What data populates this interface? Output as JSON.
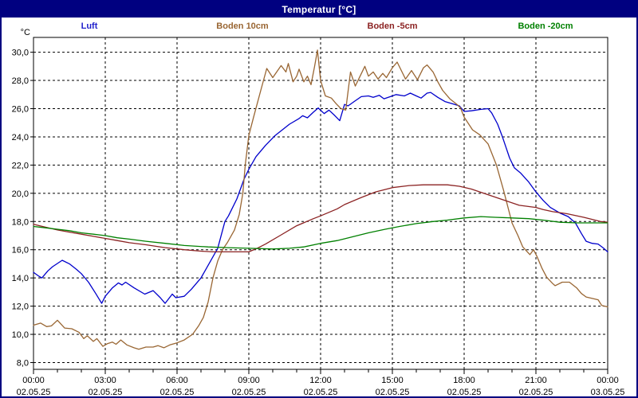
{
  "window": {
    "title": "Temperatur [°C]",
    "title_bar_color": "#000080",
    "background_color": "#ffffff"
  },
  "legend": [
    {
      "label": "Luft",
      "color": "#2222CC"
    },
    {
      "label": "Boden 10cm",
      "color": "#996633"
    },
    {
      "label": "Boden -5cm",
      "color": "#8B2222"
    },
    {
      "label": "Boden -20cm",
      "color": "#008000"
    }
  ],
  "chart_data": {
    "type": "line",
    "title": "Temperatur [°C]",
    "ylabel": "°C",
    "ylim": [
      7.52,
      31.05
    ],
    "xlim_hours": [
      0,
      24
    ],
    "grid": "dashed",
    "legend_position": "top",
    "y_ticks": [
      {
        "value": 30,
        "label": "30,0"
      },
      {
        "value": 28,
        "label": "28,0"
      },
      {
        "value": 26,
        "label": "26,0"
      },
      {
        "value": 24,
        "label": "24,0"
      },
      {
        "value": 22,
        "label": "22,0"
      },
      {
        "value": 20,
        "label": "20,0"
      },
      {
        "value": 18,
        "label": "18,0"
      },
      {
        "value": 16,
        "label": "16,0"
      },
      {
        "value": 14,
        "label": "14,0"
      },
      {
        "value": 12,
        "label": "12,0"
      },
      {
        "value": 10,
        "label": "10,0"
      },
      {
        "value": 8,
        "label": "8,0"
      }
    ],
    "x_ticks": [
      {
        "hour": 0,
        "time": "00:00",
        "date": "02.05.25"
      },
      {
        "hour": 3,
        "time": "03:00",
        "date": "02.05.25"
      },
      {
        "hour": 6,
        "time": "06:00",
        "date": "02.05.25"
      },
      {
        "hour": 9,
        "time": "09:00",
        "date": "02.05.25"
      },
      {
        "hour": 12,
        "time": "12:00",
        "date": "02.05.25"
      },
      {
        "hour": 15,
        "time": "15:00",
        "date": "02.05.25"
      },
      {
        "hour": 18,
        "time": "18:00",
        "date": "02.05.25"
      },
      {
        "hour": 21,
        "time": "21:00",
        "date": "02.05.25"
      },
      {
        "hour": 24,
        "time": "00:00",
        "date": "03.05.25"
      }
    ],
    "x_minor_tick_hours": 1,
    "series": [
      {
        "name": "Luft",
        "color": "#0000CC",
        "points": [
          [
            0,
            14.4
          ],
          [
            0.2,
            14.15
          ],
          [
            0.35,
            14.0
          ],
          [
            0.6,
            14.5
          ],
          [
            0.8,
            14.8
          ],
          [
            1.2,
            15.25
          ],
          [
            1.5,
            15.0
          ],
          [
            1.8,
            14.6
          ],
          [
            2.0,
            14.3
          ],
          [
            2.3,
            13.7
          ],
          [
            2.6,
            12.9
          ],
          [
            2.85,
            12.2
          ],
          [
            3.0,
            12.7
          ],
          [
            3.3,
            13.3
          ],
          [
            3.55,
            13.65
          ],
          [
            3.7,
            13.5
          ],
          [
            3.85,
            13.7
          ],
          [
            4.2,
            13.3
          ],
          [
            4.65,
            12.85
          ],
          [
            5.0,
            13.1
          ],
          [
            5.3,
            12.6
          ],
          [
            5.5,
            12.2
          ],
          [
            5.8,
            12.85
          ],
          [
            5.95,
            12.6
          ],
          [
            6.3,
            12.7
          ],
          [
            6.6,
            13.2
          ],
          [
            7.0,
            14.0
          ],
          [
            7.4,
            15.2
          ],
          [
            7.7,
            16.1
          ],
          [
            8.0,
            18.0
          ],
          [
            8.15,
            18.4
          ],
          [
            8.5,
            19.6
          ],
          [
            8.8,
            21.0
          ],
          [
            9.0,
            21.7
          ],
          [
            9.3,
            22.6
          ],
          [
            9.7,
            23.4
          ],
          [
            10.1,
            24.1
          ],
          [
            10.4,
            24.5
          ],
          [
            10.7,
            24.9
          ],
          [
            11.1,
            25.3
          ],
          [
            11.25,
            25.5
          ],
          [
            11.45,
            25.35
          ],
          [
            11.7,
            25.75
          ],
          [
            11.9,
            26.05
          ],
          [
            12.15,
            25.65
          ],
          [
            12.35,
            25.9
          ],
          [
            12.6,
            25.5
          ],
          [
            12.8,
            25.15
          ],
          [
            13.0,
            26.3
          ],
          [
            13.15,
            26.2
          ],
          [
            13.4,
            26.5
          ],
          [
            13.7,
            26.85
          ],
          [
            14.0,
            26.9
          ],
          [
            14.2,
            26.8
          ],
          [
            14.45,
            26.95
          ],
          [
            14.65,
            26.7
          ],
          [
            15.0,
            26.9
          ],
          [
            15.15,
            27.0
          ],
          [
            15.5,
            26.9
          ],
          [
            15.75,
            27.1
          ],
          [
            16.0,
            26.9
          ],
          [
            16.2,
            26.75
          ],
          [
            16.45,
            27.1
          ],
          [
            16.6,
            27.15
          ],
          [
            16.9,
            26.8
          ],
          [
            17.2,
            26.5
          ],
          [
            17.5,
            26.35
          ],
          [
            17.8,
            26.2
          ],
          [
            18.0,
            25.8
          ],
          [
            18.3,
            25.85
          ],
          [
            18.7,
            25.95
          ],
          [
            19.0,
            26.0
          ],
          [
            19.15,
            25.7
          ],
          [
            19.4,
            24.9
          ],
          [
            19.6,
            24.0
          ],
          [
            19.9,
            22.5
          ],
          [
            20.1,
            21.8
          ],
          [
            20.35,
            21.45
          ],
          [
            20.7,
            20.8
          ],
          [
            21.0,
            20.1
          ],
          [
            21.3,
            19.5
          ],
          [
            21.6,
            19.0
          ],
          [
            22.0,
            18.6
          ],
          [
            22.35,
            18.35
          ],
          [
            22.65,
            17.9
          ],
          [
            22.9,
            17.15
          ],
          [
            23.1,
            16.6
          ],
          [
            23.35,
            16.45
          ],
          [
            23.6,
            16.4
          ],
          [
            23.8,
            16.15
          ],
          [
            24,
            15.85
          ]
        ]
      },
      {
        "name": "Boden 10cm",
        "color": "#996633",
        "points": [
          [
            0,
            10.65
          ],
          [
            0.3,
            10.8
          ],
          [
            0.55,
            10.55
          ],
          [
            0.75,
            10.6
          ],
          [
            1.0,
            11.0
          ],
          [
            1.3,
            10.45
          ],
          [
            1.6,
            10.4
          ],
          [
            1.9,
            10.15
          ],
          [
            2.1,
            9.7
          ],
          [
            2.25,
            9.9
          ],
          [
            2.5,
            9.5
          ],
          [
            2.65,
            9.7
          ],
          [
            2.9,
            9.15
          ],
          [
            3.1,
            9.35
          ],
          [
            3.3,
            9.45
          ],
          [
            3.45,
            9.3
          ],
          [
            3.65,
            9.6
          ],
          [
            3.9,
            9.25
          ],
          [
            4.2,
            9.05
          ],
          [
            4.4,
            8.95
          ],
          [
            4.7,
            9.1
          ],
          [
            5.0,
            9.1
          ],
          [
            5.2,
            9.2
          ],
          [
            5.45,
            9.05
          ],
          [
            5.7,
            9.25
          ],
          [
            6.0,
            9.4
          ],
          [
            6.3,
            9.6
          ],
          [
            6.65,
            10.0
          ],
          [
            6.9,
            10.6
          ],
          [
            7.1,
            11.2
          ],
          [
            7.3,
            12.3
          ],
          [
            7.5,
            14.0
          ],
          [
            7.7,
            15.2
          ],
          [
            7.9,
            16.0
          ],
          [
            8.1,
            16.5
          ],
          [
            8.4,
            17.4
          ],
          [
            8.6,
            18.5
          ],
          [
            8.75,
            20.0
          ],
          [
            8.85,
            22.0
          ],
          [
            9.0,
            24.1
          ],
          [
            9.2,
            25.4
          ],
          [
            9.5,
            27.3
          ],
          [
            9.75,
            28.85
          ],
          [
            10.0,
            28.2
          ],
          [
            10.35,
            29.05
          ],
          [
            10.55,
            28.6
          ],
          [
            10.65,
            29.2
          ],
          [
            10.85,
            27.9
          ],
          [
            11.0,
            28.3
          ],
          [
            11.1,
            28.8
          ],
          [
            11.3,
            27.9
          ],
          [
            11.45,
            28.3
          ],
          [
            11.6,
            27.7
          ],
          [
            11.75,
            29.0
          ],
          [
            11.87,
            30.15
          ],
          [
            12.0,
            28.0
          ],
          [
            12.2,
            26.9
          ],
          [
            12.45,
            26.75
          ],
          [
            12.65,
            26.35
          ],
          [
            12.85,
            26.0
          ],
          [
            13.05,
            25.9
          ],
          [
            13.25,
            28.6
          ],
          [
            13.45,
            27.6
          ],
          [
            13.65,
            28.3
          ],
          [
            13.85,
            29.0
          ],
          [
            14.0,
            28.3
          ],
          [
            14.2,
            28.6
          ],
          [
            14.4,
            28.1
          ],
          [
            14.6,
            28.5
          ],
          [
            14.75,
            28.2
          ],
          [
            15.0,
            28.9
          ],
          [
            15.2,
            29.3
          ],
          [
            15.55,
            28.1
          ],
          [
            15.8,
            28.7
          ],
          [
            16.05,
            28.05
          ],
          [
            16.3,
            28.9
          ],
          [
            16.45,
            29.1
          ],
          [
            16.7,
            28.6
          ],
          [
            16.9,
            27.9
          ],
          [
            17.1,
            27.3
          ],
          [
            17.4,
            26.7
          ],
          [
            17.7,
            26.3
          ],
          [
            17.85,
            26.05
          ],
          [
            18.0,
            25.4
          ],
          [
            18.35,
            24.5
          ],
          [
            18.65,
            24.15
          ],
          [
            19.0,
            23.5
          ],
          [
            19.35,
            22.0
          ],
          [
            19.65,
            20.2
          ],
          [
            20.0,
            17.9
          ],
          [
            20.25,
            17.0
          ],
          [
            20.45,
            16.2
          ],
          [
            20.75,
            15.65
          ],
          [
            20.9,
            16.0
          ],
          [
            21.05,
            15.5
          ],
          [
            21.25,
            14.7
          ],
          [
            21.45,
            14.05
          ],
          [
            21.7,
            13.6
          ],
          [
            21.8,
            13.45
          ],
          [
            22.1,
            13.7
          ],
          [
            22.4,
            13.7
          ],
          [
            22.7,
            13.3
          ],
          [
            22.9,
            12.9
          ],
          [
            23.1,
            12.65
          ],
          [
            23.35,
            12.55
          ],
          [
            23.6,
            12.45
          ],
          [
            23.75,
            12.05
          ],
          [
            24,
            11.95
          ]
        ]
      },
      {
        "name": "Boden -5cm",
        "color": "#8B2222",
        "points": [
          [
            0,
            17.8
          ],
          [
            0.5,
            17.6
          ],
          [
            1,
            17.4
          ],
          [
            1.5,
            17.25
          ],
          [
            2,
            17.1
          ],
          [
            2.5,
            16.95
          ],
          [
            3,
            16.8
          ],
          [
            3.5,
            16.65
          ],
          [
            4,
            16.5
          ],
          [
            4.7,
            16.35
          ],
          [
            5.5,
            16.15
          ],
          [
            6.3,
            16.0
          ],
          [
            7,
            15.9
          ],
          [
            7.5,
            15.85
          ],
          [
            8.5,
            15.85
          ],
          [
            9.0,
            15.85
          ],
          [
            9.35,
            16.1
          ],
          [
            9.7,
            16.4
          ],
          [
            10.3,
            17.0
          ],
          [
            11,
            17.7
          ],
          [
            11.7,
            18.2
          ],
          [
            12,
            18.4
          ],
          [
            12.7,
            18.9
          ],
          [
            13,
            19.2
          ],
          [
            13.7,
            19.7
          ],
          [
            14.3,
            20.1
          ],
          [
            15,
            20.4
          ],
          [
            15.7,
            20.55
          ],
          [
            16.3,
            20.6
          ],
          [
            17.3,
            20.6
          ],
          [
            17.8,
            20.5
          ],
          [
            18.3,
            20.3
          ],
          [
            19,
            19.9
          ],
          [
            19.7,
            19.5
          ],
          [
            20.3,
            19.15
          ],
          [
            21,
            19.0
          ],
          [
            21.3,
            18.85
          ],
          [
            21.7,
            18.7
          ],
          [
            22.3,
            18.55
          ],
          [
            23,
            18.3
          ],
          [
            23.7,
            18.0
          ],
          [
            24,
            17.95
          ]
        ]
      },
      {
        "name": "Boden -20cm",
        "color": "#008000",
        "points": [
          [
            0,
            17.65
          ],
          [
            0.5,
            17.55
          ],
          [
            1,
            17.45
          ],
          [
            1.5,
            17.35
          ],
          [
            2,
            17.2
          ],
          [
            2.5,
            17.1
          ],
          [
            3,
            17.0
          ],
          [
            3.5,
            16.85
          ],
          [
            4,
            16.75
          ],
          [
            4.7,
            16.6
          ],
          [
            5.5,
            16.45
          ],
          [
            6.3,
            16.3
          ],
          [
            7.3,
            16.2
          ],
          [
            8.1,
            16.15
          ],
          [
            9,
            16.1
          ],
          [
            10,
            16.05
          ],
          [
            10.7,
            16.1
          ],
          [
            11.3,
            16.2
          ],
          [
            12,
            16.45
          ],
          [
            12.7,
            16.65
          ],
          [
            13.3,
            16.9
          ],
          [
            14,
            17.2
          ],
          [
            14.7,
            17.45
          ],
          [
            15.3,
            17.65
          ],
          [
            16,
            17.85
          ],
          [
            16.7,
            18.0
          ],
          [
            17.3,
            18.1
          ],
          [
            18,
            18.25
          ],
          [
            18.7,
            18.35
          ],
          [
            19.3,
            18.3
          ],
          [
            20,
            18.25
          ],
          [
            20.7,
            18.2
          ],
          [
            21.3,
            18.1
          ],
          [
            22,
            17.95
          ],
          [
            22.7,
            17.9
          ],
          [
            23.3,
            17.9
          ],
          [
            24,
            17.9
          ]
        ]
      }
    ]
  }
}
